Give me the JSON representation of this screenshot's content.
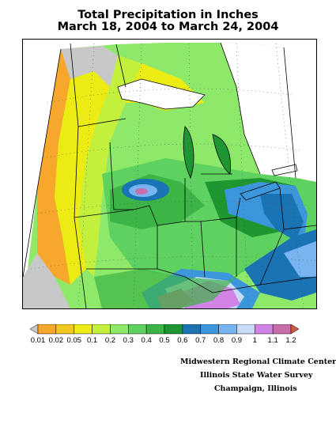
{
  "title": {
    "line1": "Total Precipitation in Inches",
    "line2": "March 18, 2004 to March 24, 2004"
  },
  "legend": {
    "labels": [
      "0.01",
      "0.02",
      "0.05",
      "0.1",
      "0.2",
      "0.3",
      "0.4",
      "0.5",
      "0.6",
      "0.7",
      "0.8",
      "0.9",
      "1",
      "1.1",
      "1.2"
    ],
    "colors": [
      "#c8c8c8",
      "#f7a82c",
      "#f2c81e",
      "#ecec14",
      "#c3f03c",
      "#8ee86a",
      "#5fd160",
      "#3cb446",
      "#1e9632",
      "#1a74b4",
      "#3c96dc",
      "#78b4f0",
      "#c8dcf8",
      "#d284e6",
      "#c86eaa",
      "#d25a3c"
    ]
  },
  "credits": {
    "line1": "Midwestern Regional Climate Center",
    "line2": "Illinois State Water Survey",
    "line3": "Champaign, Illinois"
  },
  "map": {
    "region": "Upper Midwest / Great Lakes",
    "colors": {
      "none": "#ffffff",
      "gray": "#c8c8c8",
      "orange": "#f7a82c",
      "yellow": "#ecec14",
      "lightgreen": "#c3f03c",
      "green1": "#8ee86a",
      "green2": "#5fd160",
      "green3": "#3cb446",
      "darkgreen": "#1e9632",
      "blue": "#3c96dc",
      "darkblue": "#1a74b4",
      "lightblue": "#c8dcf8",
      "purple": "#d284e6",
      "magenta": "#c86eaa"
    }
  }
}
